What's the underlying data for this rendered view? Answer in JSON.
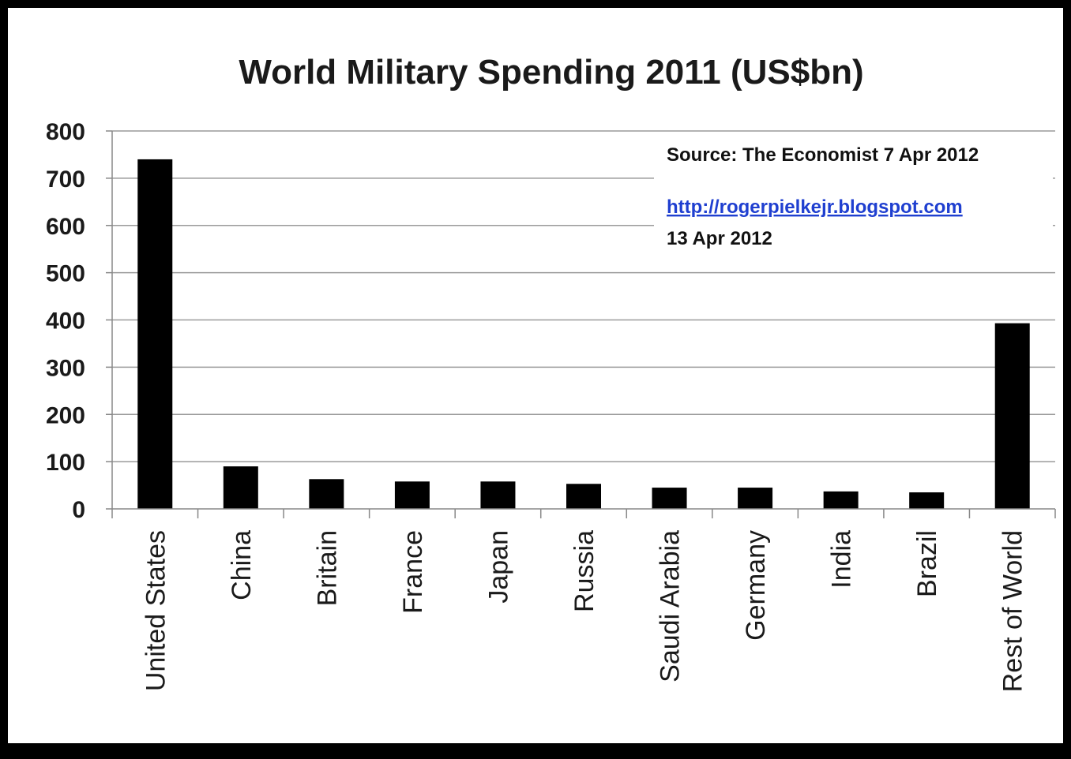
{
  "chart_data": {
    "type": "bar",
    "title": "World Military Spending 2011 (US$bn)",
    "categories": [
      "United States",
      "China",
      "Britain",
      "France",
      "Japan",
      "Russia",
      "Saudi Arabia",
      "Germany",
      "India",
      "Brazil",
      "Rest of World"
    ],
    "values": [
      740,
      90,
      63,
      58,
      58,
      53,
      45,
      45,
      37,
      35,
      393
    ],
    "ylim": [
      0,
      800
    ],
    "yticks": [
      "0",
      "100",
      "200",
      "300",
      "400",
      "500",
      "600",
      "700",
      "800"
    ],
    "xlabel": "",
    "ylabel": "",
    "grid": true,
    "bar_color": "#000000",
    "annotations": {
      "source": "Source: The Economist 7 Apr 2012",
      "url": "http://rogerpielkejr.blogspot.com",
      "date": "13 Apr 2012"
    }
  }
}
